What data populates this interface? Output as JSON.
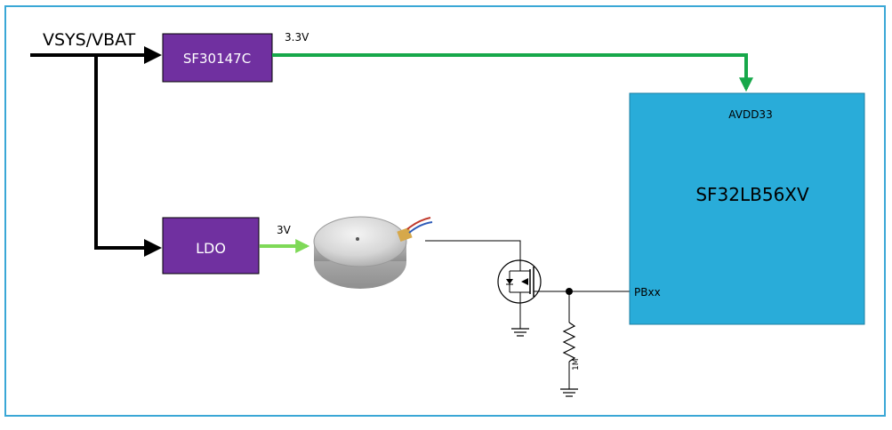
{
  "labels": {
    "input_rail": "VSYS/VBAT",
    "rail_33": "3.3V",
    "rail_3v": "3V",
    "avdd": "AVDD33",
    "pin": "PBxx",
    "resistor": "1M"
  },
  "blocks": {
    "regulator": "SF30147C",
    "ldo": "LDO",
    "mcu": "SF32LB56XV"
  },
  "colors": {
    "frame": "#3aa7d6",
    "purple_block": "#7030a0",
    "mcu_fill": "#29acd9",
    "green_rail": "#17a84a",
    "light_green_rail": "#7ed957",
    "wire": "#000000"
  }
}
